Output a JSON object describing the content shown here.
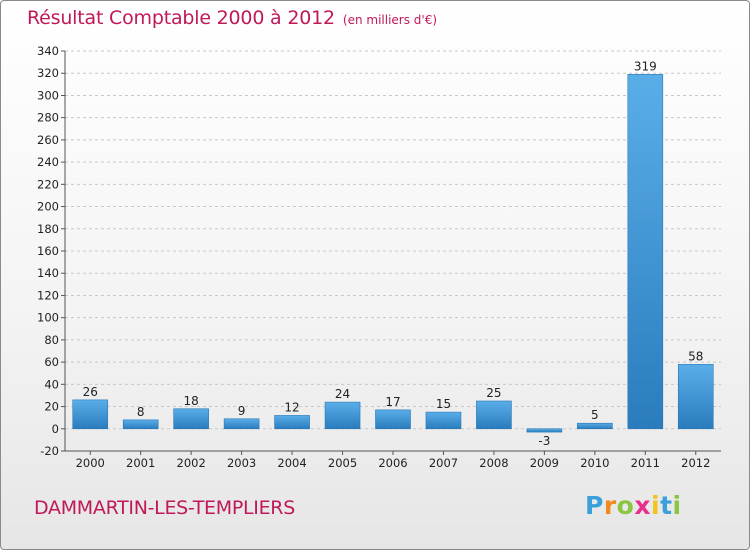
{
  "title": {
    "main": "Résultat Comptable 2000 à 2012",
    "unit": "(en milliers d'€)"
  },
  "commune": "DAMMARTIN-LES-TEMPLIERS",
  "logo": {
    "letters": [
      "P",
      "r",
      "o",
      "x",
      "i",
      "t",
      "i"
    ],
    "colors": [
      "#3aa0dc",
      "#f08a1c",
      "#8cc640",
      "#e8308a",
      "#f0c419",
      "#3aa0dc",
      "#8cc640"
    ]
  },
  "chart_data": {
    "type": "bar",
    "title": "Résultat Comptable 2000 à 2012",
    "subtitle": "(en milliers d'€)",
    "categories": [
      "2000",
      "2001",
      "2002",
      "2003",
      "2004",
      "2005",
      "2006",
      "2007",
      "2008",
      "2009",
      "2010",
      "2011",
      "2012"
    ],
    "values": [
      26,
      8,
      18,
      9,
      12,
      24,
      17,
      15,
      25,
      -3,
      5,
      319,
      58
    ],
    "data_labels": [
      "26",
      "8",
      "18",
      "9",
      "12",
      "24",
      "17",
      "15",
      "25",
      "-3",
      "5",
      "319",
      "58"
    ],
    "yticks": [
      -20,
      0,
      20,
      40,
      60,
      80,
      100,
      120,
      140,
      160,
      180,
      200,
      220,
      240,
      260,
      280,
      300,
      320,
      340
    ],
    "ylim": [
      -20,
      340
    ],
    "xlabel": "",
    "ylabel": "",
    "grid": "horizontal dashed",
    "colors": {
      "bar_light": "#5aaee8",
      "bar_dark": "#2a7cbd",
      "axis": "#555555",
      "grid": "#c8c8c8",
      "accent": "#c0185a"
    }
  }
}
